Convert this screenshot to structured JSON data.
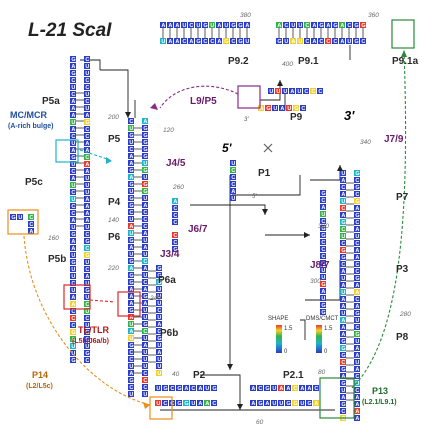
{
  "title": "L-21 ScaI",
  "domains": {
    "p1": "P1",
    "p2": "P2",
    "p2_1": "P2.1",
    "p3": "P3",
    "p4": "P4",
    "p5": "P5",
    "p5a": "P5a",
    "p5b": "P5b",
    "p5c": "P5c",
    "p6": "P6",
    "p6a": "P6a",
    "p6b": "P6b",
    "p7": "P7",
    "p8": "P8",
    "p9": "P9",
    "p9_1": "P9.1",
    "p9_1a": "P9.1a",
    "p9_2": "P9.2",
    "j3_4": "J3/4",
    "j4_5": "J4/5",
    "j6_7": "J6/7",
    "j7_9": "J7/9",
    "j8_7": "J8/7",
    "l9_p5": "L9/P5"
  },
  "annotations": {
    "mc_mcr": "MC/MCR",
    "mc_mcr_sub": "(A-rich bulge)",
    "tl_tlr": "TL/TLR",
    "tl_tlr_sub": "(L5b/J6a/b)",
    "p14": "P14",
    "p14_sub": "(L2/L5c)",
    "p13": "P13",
    "p13_sub": "(L2.1/L9.1)"
  },
  "ends": {
    "five_prime": "5'",
    "three_prime": "3'",
    "five_prime_small": "5'",
    "three_prime_small": "3'"
  },
  "numbers": [
    "380",
    "360",
    "400",
    "120",
    "200",
    "260",
    "140",
    "160",
    "220",
    "240",
    "40",
    "60",
    "80",
    "280",
    "300",
    "320",
    "340"
  ],
  "legend": {
    "shape": "SHAPE",
    "shape_max": "1.5",
    "shape_min": "0",
    "dms": "DMS/CMCT",
    "dms_max": "1.5",
    "dms_min": "0"
  },
  "colors": {
    "low": "#2a3dc8",
    "mid": "#36b24a",
    "high": "#e83a2a",
    "yellow": "#f2d22a",
    "cyan": "#1eb4c8"
  }
}
